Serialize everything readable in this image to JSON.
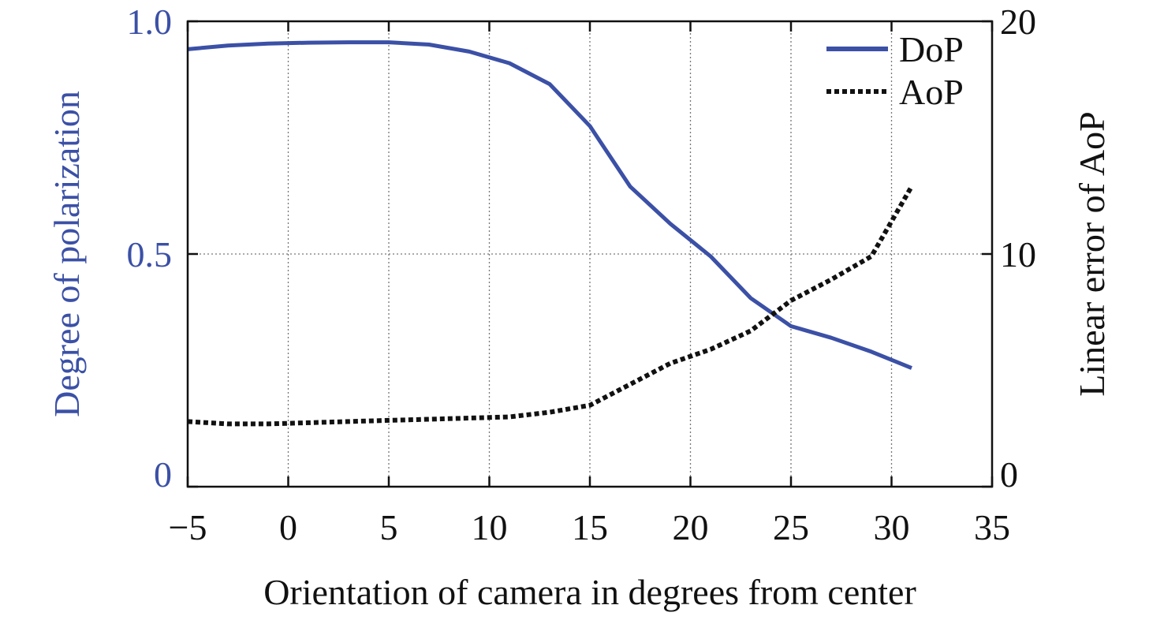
{
  "colors": {
    "left_axis": "#3b50a6",
    "dop_line": "#3b50a6",
    "aop_line": "#111111",
    "frame": "#111111",
    "grid": "#777777"
  },
  "chart_data": {
    "type": "line",
    "title": "",
    "xlabel": "Orientation of camera in degrees from center",
    "ylabel": "Degree of polarization",
    "y2label": "Linear error of AoP",
    "xlim": [
      -5,
      35
    ],
    "ylim": [
      0,
      1.0
    ],
    "y2lim": [
      0,
      20
    ],
    "x_ticks": [
      -5,
      0,
      5,
      10,
      15,
      20,
      25,
      30,
      35
    ],
    "x_tick_labels": [
      "−5",
      "0",
      "5",
      "10",
      "15",
      "20",
      "25",
      "30",
      "35"
    ],
    "y_ticks": [
      0,
      0.5,
      1.0
    ],
    "y_tick_labels": [
      "0",
      "0.5",
      "1.0"
    ],
    "y2_ticks": [
      0,
      10,
      20
    ],
    "y2_tick_labels": [
      "0",
      "10",
      "20"
    ],
    "grid": true,
    "legend_position": "top-right",
    "series": [
      {
        "name": "DoP",
        "axis": "left",
        "style": "solid",
        "x": [
          -5,
          -3,
          -1,
          1,
          3,
          5,
          7,
          9,
          11,
          13,
          15,
          17,
          19,
          21,
          23,
          25,
          27,
          29,
          31
        ],
        "y": [
          0.94,
          0.948,
          0.952,
          0.954,
          0.955,
          0.955,
          0.95,
          0.935,
          0.91,
          0.865,
          0.775,
          0.645,
          0.565,
          0.495,
          0.405,
          0.345,
          0.32,
          0.29,
          0.255
        ]
      },
      {
        "name": "AoP",
        "axis": "right",
        "style": "dotted",
        "x": [
          -5,
          -3,
          -1,
          1,
          3,
          5,
          7,
          9,
          11,
          13,
          15,
          17,
          19,
          21,
          23,
          25,
          27,
          29,
          31
        ],
        "y": [
          2.8,
          2.7,
          2.7,
          2.75,
          2.8,
          2.85,
          2.9,
          2.95,
          3.0,
          3.2,
          3.5,
          4.4,
          5.3,
          5.9,
          6.7,
          8.0,
          8.9,
          9.9,
          12.9
        ]
      }
    ]
  }
}
